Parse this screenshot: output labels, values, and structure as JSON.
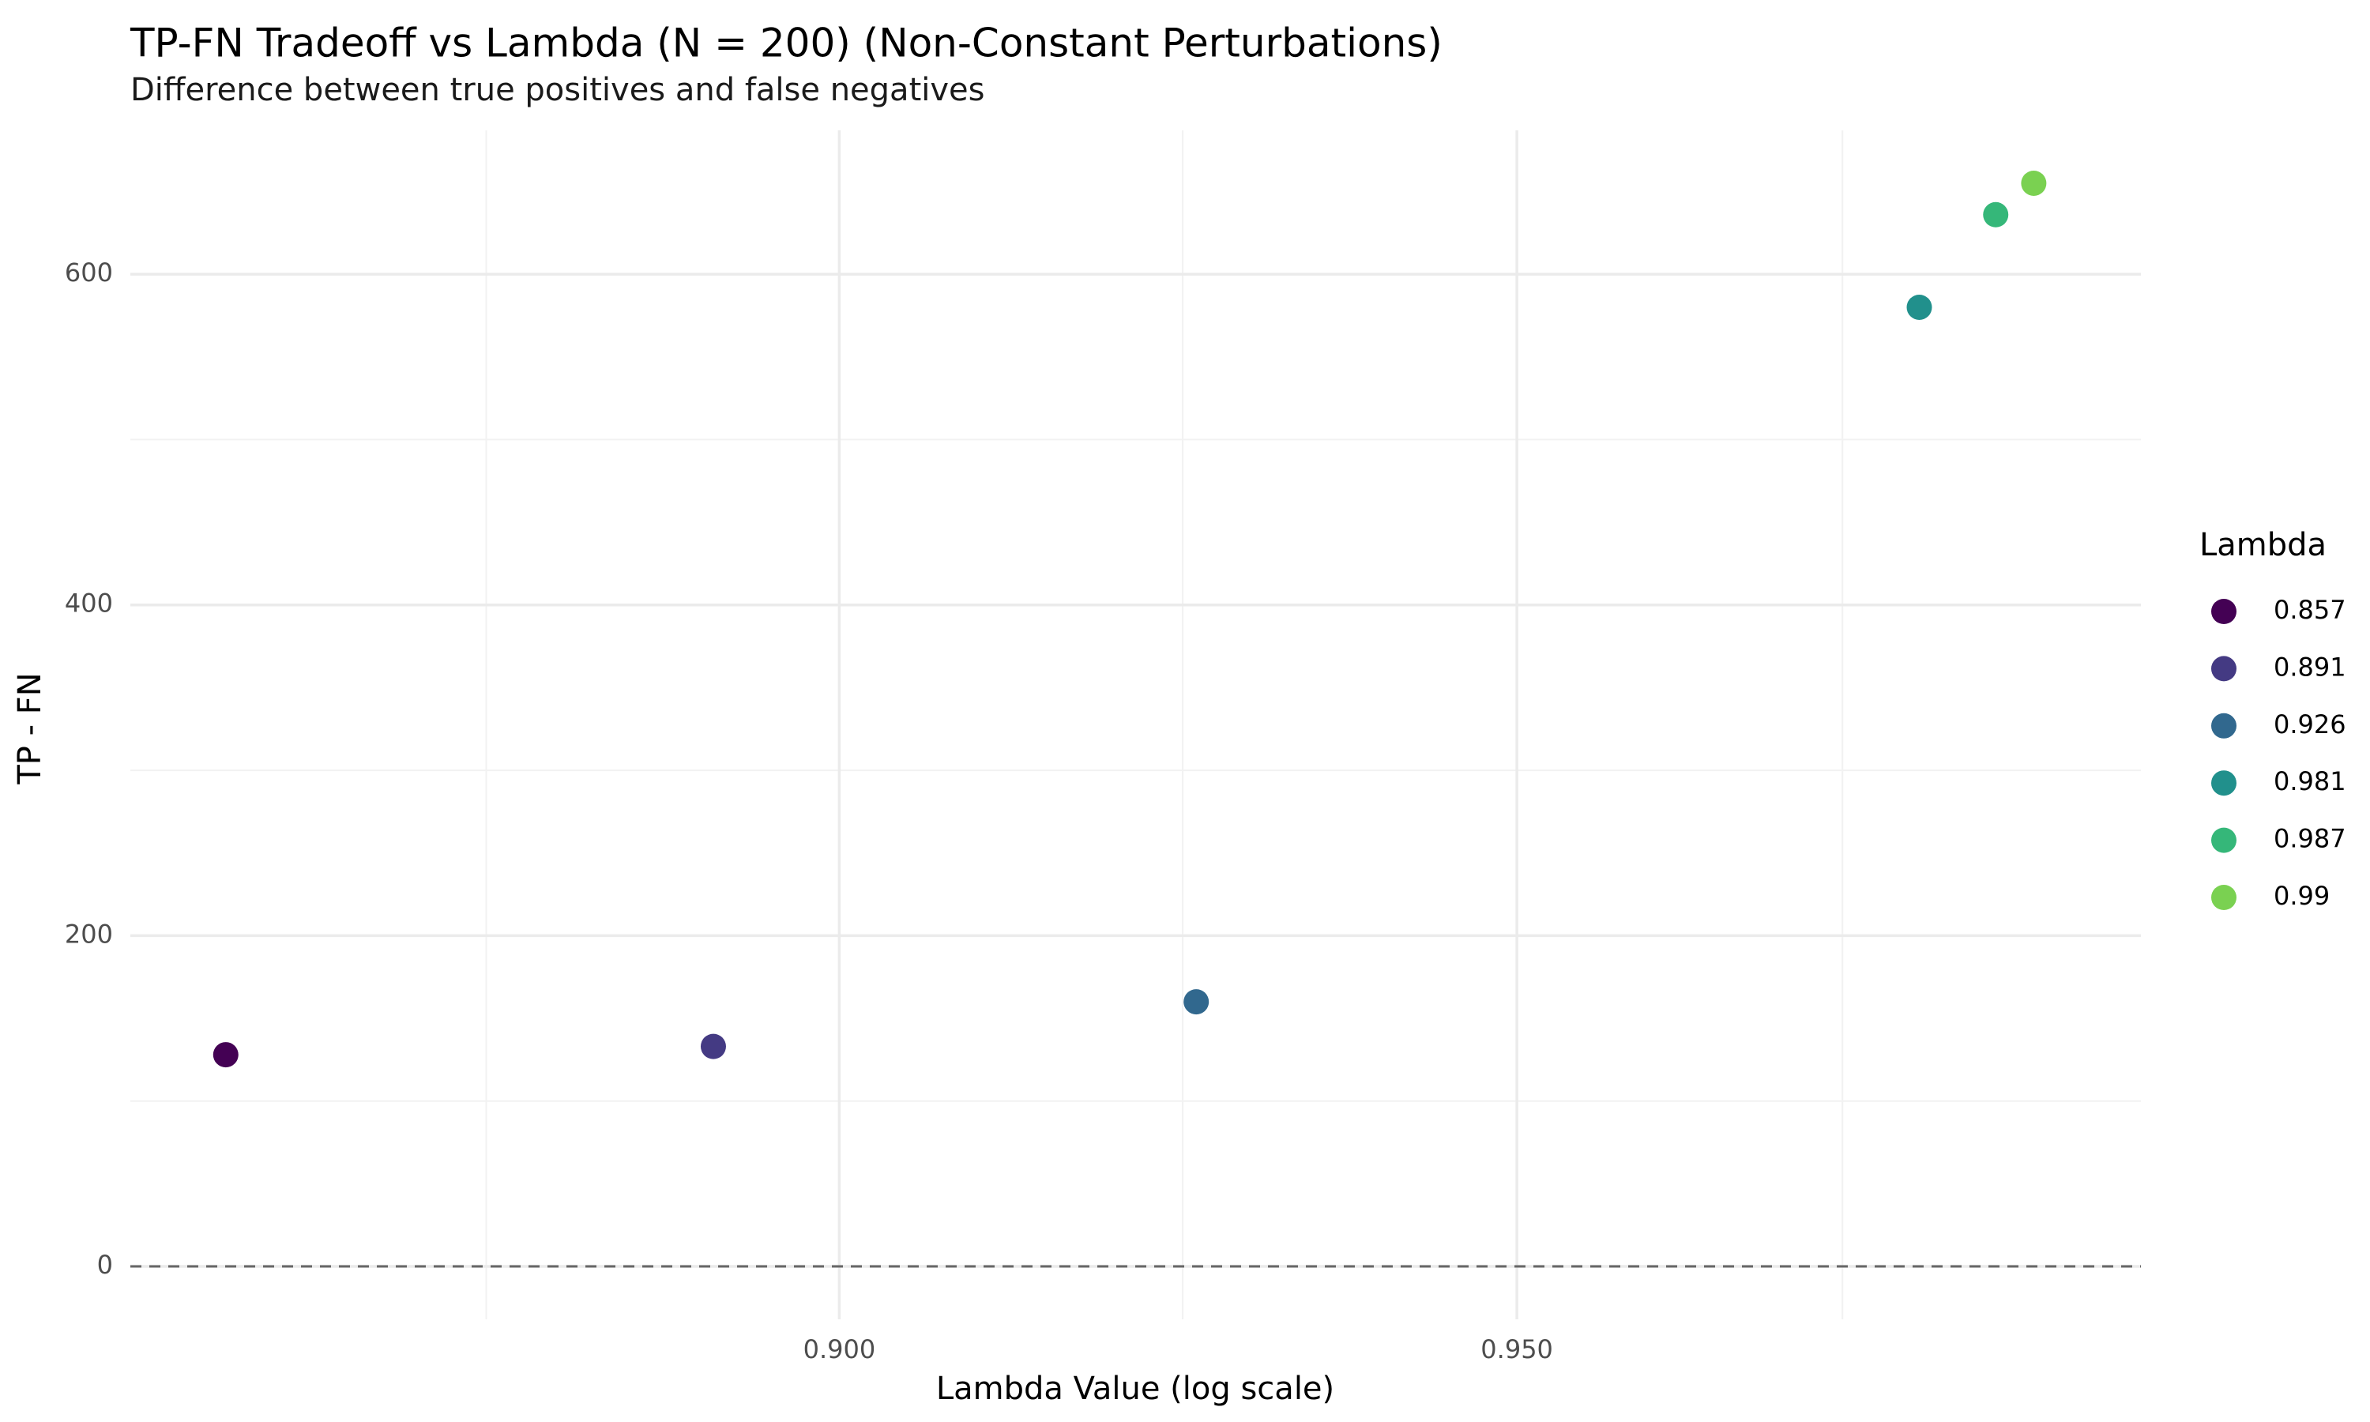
{
  "chart_data": {
    "type": "scatter",
    "title": "TP-FN Tradeoff vs Lambda (N = 200) (Non-Constant Perturbations)",
    "subtitle": "Difference between true positives and false negatives",
    "xlabel": "Lambda Value (log scale)",
    "ylabel": "TP - FN",
    "x_scale": "log",
    "xlim": [
      0.8505,
      0.9985
    ],
    "ylim": [
      -32,
      687
    ],
    "x_major_ticks": [
      0.9,
      0.95
    ],
    "x_tick_labels": [
      "0.900",
      "0.950"
    ],
    "x_minor_ticks": [
      0.875,
      0.925,
      0.975
    ],
    "y_major_ticks": [
      0,
      200,
      400,
      600
    ],
    "y_tick_labels": [
      "0",
      "200",
      "400",
      "600"
    ],
    "y_minor_ticks": [
      100,
      300,
      500
    ],
    "grid": true,
    "reference_line": {
      "y": 0,
      "style": "dashed",
      "color": "#666666"
    },
    "legend": {
      "title": "Lambda",
      "position": "right",
      "entries": [
        "0.857",
        "0.891",
        "0.926",
        "0.981",
        "0.987",
        "0.99"
      ]
    },
    "points": [
      {
        "x": 0.857,
        "y": 128,
        "label": "0.857",
        "color": "#440154"
      },
      {
        "x": 0.891,
        "y": 133,
        "label": "0.891",
        "color": "#443A83"
      },
      {
        "x": 0.926,
        "y": 160,
        "label": "0.926",
        "color": "#31688E"
      },
      {
        "x": 0.981,
        "y": 580,
        "label": "0.981",
        "color": "#21908C"
      },
      {
        "x": 0.987,
        "y": 636,
        "label": "0.987",
        "color": "#35B779"
      },
      {
        "x": 0.99,
        "y": 655,
        "label": "0.99",
        "color": "#7AD151"
      }
    ]
  }
}
